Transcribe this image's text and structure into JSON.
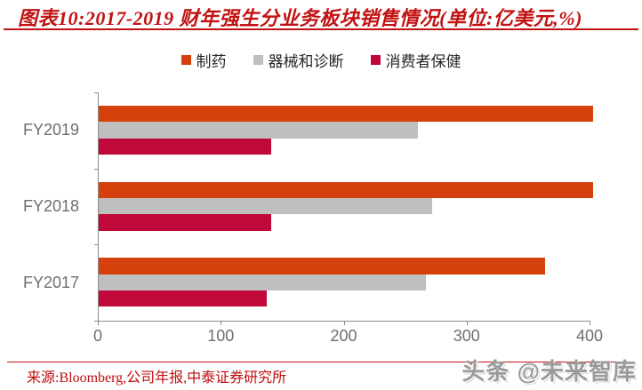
{
  "title": {
    "text": "图表10:2017-2019 财年强生分业务板块销售情况(单位:亿美元,%)"
  },
  "chart_data": {
    "type": "bar",
    "orientation": "horizontal",
    "title": "2017-2019 财年强生分业务板块销售情况",
    "unit": "亿美元",
    "categories": [
      "FY2019",
      "FY2018",
      "FY2017"
    ],
    "series": [
      {
        "key": "pharma",
        "name": "制药",
        "color": "#D6400C",
        "values": [
          402,
          402,
          363
        ]
      },
      {
        "key": "devices-diagnostics",
        "name": "器械和诊断",
        "color": "#BFBFBF",
        "values": [
          260,
          271,
          266
        ]
      },
      {
        "key": "consumer-health",
        "name": "消费者保健",
        "color": "#C1083A",
        "values": [
          140,
          140,
          137
        ]
      }
    ],
    "xlim": [
      0,
      400
    ],
    "x_ticks": [
      0,
      100,
      200,
      300,
      400
    ],
    "legend_position": "top",
    "grid": false
  },
  "footer": {
    "source": "来源:Bloomberg,公司年报,中泰证券研究所"
  },
  "watermark": {
    "text": "头条 @未来智库"
  },
  "colors": {
    "title_red": "#C11212",
    "axis_gray": "#8C8C8C",
    "label_gray": "#6E6E6E"
  }
}
